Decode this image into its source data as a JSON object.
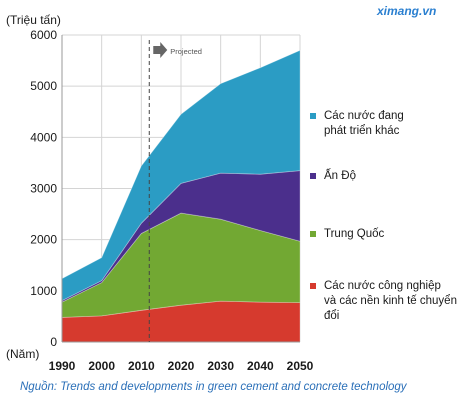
{
  "watermark": "ximang.vn",
  "source_note": "Nguồn: Trends and developments in green cement and concrete technology",
  "colors": {
    "others": "#2b9cc4",
    "india": "#4b2f8c",
    "china": "#72a833",
    "industrial": "#d63a2e"
  },
  "chart_data": {
    "type": "area",
    "stacked": true,
    "unit_label": "(Triệu tấn)",
    "xlabel": "(Năm)",
    "x": [
      1990,
      2000,
      2010,
      2020,
      2030,
      2040,
      2050
    ],
    "ylim": [
      0,
      6000
    ],
    "yticks": [
      0,
      1000,
      2000,
      3000,
      4000,
      5000,
      6000
    ],
    "xticks": [
      1990,
      2000,
      2010,
      2020,
      2030,
      2040,
      2050
    ],
    "projection_marker": {
      "x": 2012,
      "label": "Projected"
    },
    "grid": true,
    "legend_position": "right",
    "series": [
      {
        "name": "Các nước công nghiệp\nvà các nền kinh tế chuyển đổi",
        "color": "#d63a2e",
        "values": [
          480,
          510,
          620,
          720,
          800,
          780,
          770
        ]
      },
      {
        "name": "Trung Quốc",
        "color": "#72a833",
        "values": [
          300,
          650,
          1500,
          1800,
          1600,
          1400,
          1200
        ]
      },
      {
        "name": "Ấn Độ",
        "color": "#4b2f8c",
        "values": [
          30,
          40,
          200,
          580,
          900,
          1100,
          1380
        ]
      },
      {
        "name": "Các nước đang\nphát triển khác",
        "color": "#2b9cc4",
        "values": [
          430,
          450,
          1120,
          1350,
          1750,
          2080,
          2350
        ]
      }
    ]
  }
}
